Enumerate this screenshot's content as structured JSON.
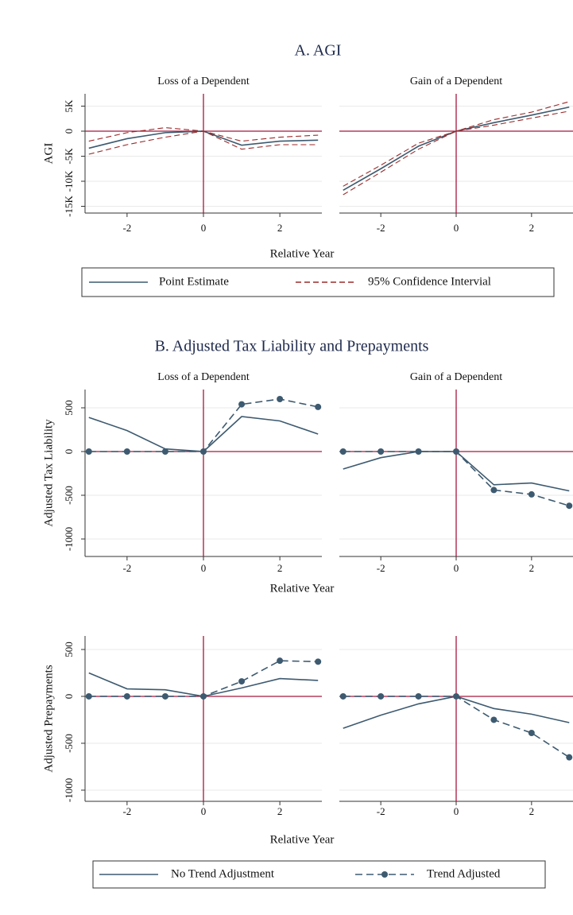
{
  "chart_data": [
    {
      "type": "line",
      "title": "A. AGI",
      "ylabel": "AGI",
      "xlabel": "Relative Year",
      "x": [
        -3,
        -2,
        -1,
        0,
        1,
        2,
        3
      ],
      "xlim": [
        -3.1,
        3.1
      ],
      "xticks": [
        -2,
        0,
        2
      ],
      "ylim": [
        -16350,
        7460
      ],
      "yticks": [
        {
          "value": 5000,
          "label": "5K"
        },
        0,
        {
          "value": -5000,
          "label": "-5K"
        },
        {
          "value": -10000,
          "label": "-10K"
        },
        {
          "value": -15000,
          "label": "-15K"
        }
      ],
      "grid": true,
      "hline": 0,
      "vline": 0,
      "refline_color": "#a8173f",
      "legend": [
        {
          "name": "Point Estimate"
        },
        {
          "name": "95% Confidence Intervial"
        }
      ],
      "panels": [
        {
          "title": "Loss of a Dependent",
          "series": [
            {
              "color": "#3d5a70",
              "style": "solid",
              "values": [
                -3400,
                -1500,
                -300,
                0,
                -2800,
                -2000,
                -1800
              ]
            },
            {
              "color": "#9b2a2a",
              "style": "dashed",
              "lower": [
                -4600,
                -2700,
                -1200,
                0,
                -3600,
                -2700,
                -2700
              ],
              "upper": [
                -2000,
                -300,
                700,
                0,
                -2000,
                -1200,
                -800
              ]
            }
          ]
        },
        {
          "title": "Gain of a Dependent",
          "series": [
            {
              "color": "#3d5a70",
              "style": "solid",
              "values": [
                -11800,
                -7500,
                -3000,
                0,
                1700,
                3200,
                4800
              ]
            },
            {
              "color": "#9b2a2a",
              "style": "dashed",
              "lower": [
                -12700,
                -8200,
                -3600,
                0,
                1200,
                2600,
                4000
              ],
              "upper": [
                -11000,
                -6800,
                -2400,
                0,
                2300,
                3800,
                5900
              ]
            }
          ]
        }
      ]
    },
    {
      "type": "line",
      "title": "B. Adjusted Tax Liability and Prepayments",
      "ylabel": "Adjusted Tax Liability",
      "xlabel": "Relative Year",
      "x": [
        -3,
        -2,
        -1,
        0,
        1,
        2,
        3
      ],
      "xlim": [
        -3.1,
        3.1
      ],
      "xticks": [
        -2,
        0,
        2
      ],
      "ylim": [
        -1200,
        709
      ],
      "yticks": [
        500,
        0,
        -500,
        -1000
      ],
      "grid": true,
      "hline": 0,
      "vline": 0,
      "refline_color": "#a8173f",
      "panels": [
        {
          "title": "Loss of a Dependent",
          "series": [
            {
              "color": "#3d5a70",
              "style": "solid",
              "values": [
                390,
                240,
                30,
                0,
                400,
                350,
                200
              ]
            },
            {
              "color": "#3d5a70",
              "style": "dashed",
              "marker": "circle",
              "values": [
                0,
                0,
                0,
                0,
                540,
                600,
                510
              ]
            }
          ]
        },
        {
          "title": "Gain of a Dependent",
          "series": [
            {
              "color": "#3d5a70",
              "style": "solid",
              "values": [
                -200,
                -70,
                0,
                0,
                -380,
                -360,
                -450
              ]
            },
            {
              "color": "#3d5a70",
              "style": "dashed",
              "marker": "circle",
              "values": [
                0,
                0,
                0,
                0,
                -440,
                -490,
                -620
              ]
            }
          ]
        }
      ]
    },
    {
      "type": "line",
      "ylabel": "Adjusted Prepayments",
      "xlabel": "Relative Year",
      "x": [
        -3,
        -2,
        -1,
        0,
        1,
        2,
        3
      ],
      "xlim": [
        -3.1,
        3.1
      ],
      "xticks": [
        -2,
        0,
        2
      ],
      "ylim": [
        -1119,
        644
      ],
      "yticks": [
        500,
        0,
        -500,
        -1000
      ],
      "grid": true,
      "hline": 0,
      "vline": 0,
      "refline_color": "#a8173f",
      "legend": [
        {
          "name": "No Trend Adjustment"
        },
        {
          "name": "Trend Adjusted"
        }
      ],
      "panels": [
        {
          "series": [
            {
              "color": "#3d5a70",
              "style": "solid",
              "values": [
                250,
                80,
                70,
                0,
                90,
                190,
                170
              ]
            },
            {
              "color": "#3d5a70",
              "style": "dashed",
              "marker": "circle",
              "values": [
                0,
                0,
                0,
                0,
                160,
                380,
                370
              ]
            }
          ]
        },
        {
          "series": [
            {
              "color": "#3d5a70",
              "style": "solid",
              "values": [
                -340,
                -200,
                -80,
                0,
                -130,
                -190,
                -280
              ]
            },
            {
              "color": "#3d5a70",
              "style": "dashed",
              "marker": "circle",
              "values": [
                0,
                0,
                0,
                0,
                -250,
                -390,
                -650
              ]
            }
          ]
        }
      ]
    }
  ]
}
